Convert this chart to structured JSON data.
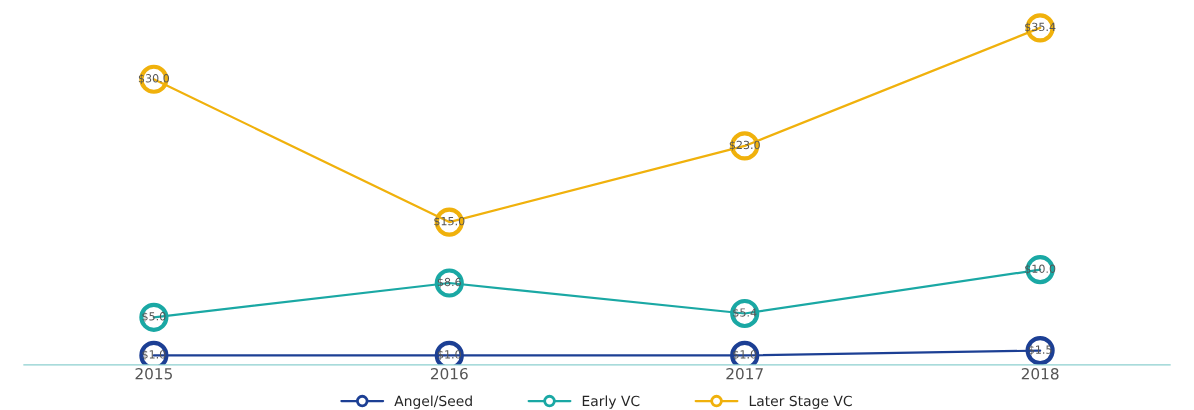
{
  "chart_data": {
    "type": "line",
    "categories": [
      "2015",
      "2016",
      "2017",
      "2018"
    ],
    "series": [
      {
        "name": "Angel/Seed",
        "color": "#1c3f94",
        "values": [
          1.0,
          1.0,
          1.0,
          1.5
        ],
        "value_labels": [
          "$1.0",
          "$1.0",
          "$1.0",
          "$1.5"
        ]
      },
      {
        "name": "Early VC",
        "color": "#1aa8a4",
        "values": [
          5.0,
          8.6,
          5.4,
          10.0
        ],
        "value_labels": [
          "$5.0",
          "$8.6",
          "$5.4",
          "$10.0"
        ]
      },
      {
        "name": "Later Stage VC",
        "color": "#f0b10c",
        "values": [
          30.0,
          15.0,
          23.0,
          35.4
        ],
        "value_labels": [
          "$30.0",
          "$15.0",
          "$23.0",
          "$35.4"
        ]
      }
    ],
    "tick_labels": "x",
    "grid": false,
    "legend": "bottom",
    "marker": "circle",
    "line_style": "solid"
  }
}
